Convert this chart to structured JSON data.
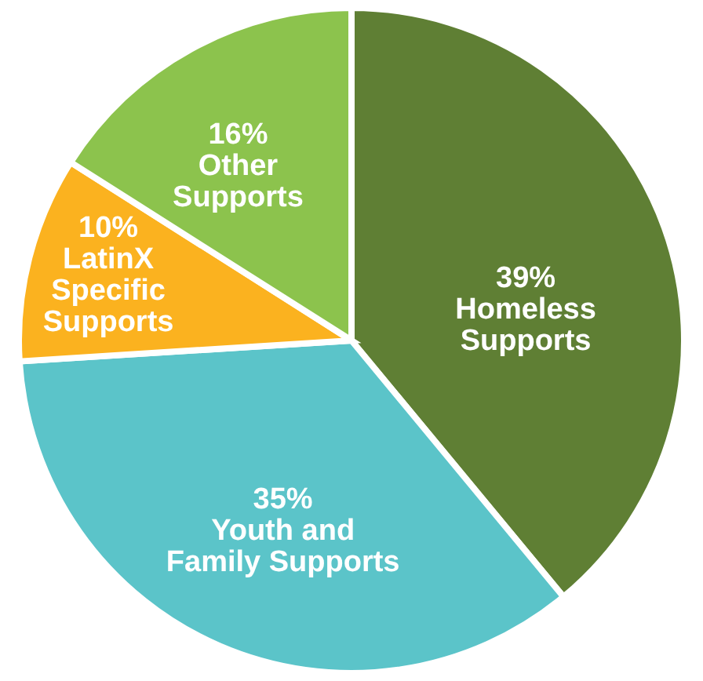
{
  "chart_data": {
    "type": "pie",
    "categories": [
      "Homeless Supports",
      "Youth and Family Supports",
      "LatinX Specific Supports",
      "Other Supports"
    ],
    "values": [
      39,
      35,
      10,
      16
    ],
    "value_labels": [
      "39%",
      "35%",
      "10%",
      "16%"
    ],
    "colors": [
      "#5f7f34",
      "#5bc4c9",
      "#fbb21f",
      "#8cc34d"
    ]
  }
}
